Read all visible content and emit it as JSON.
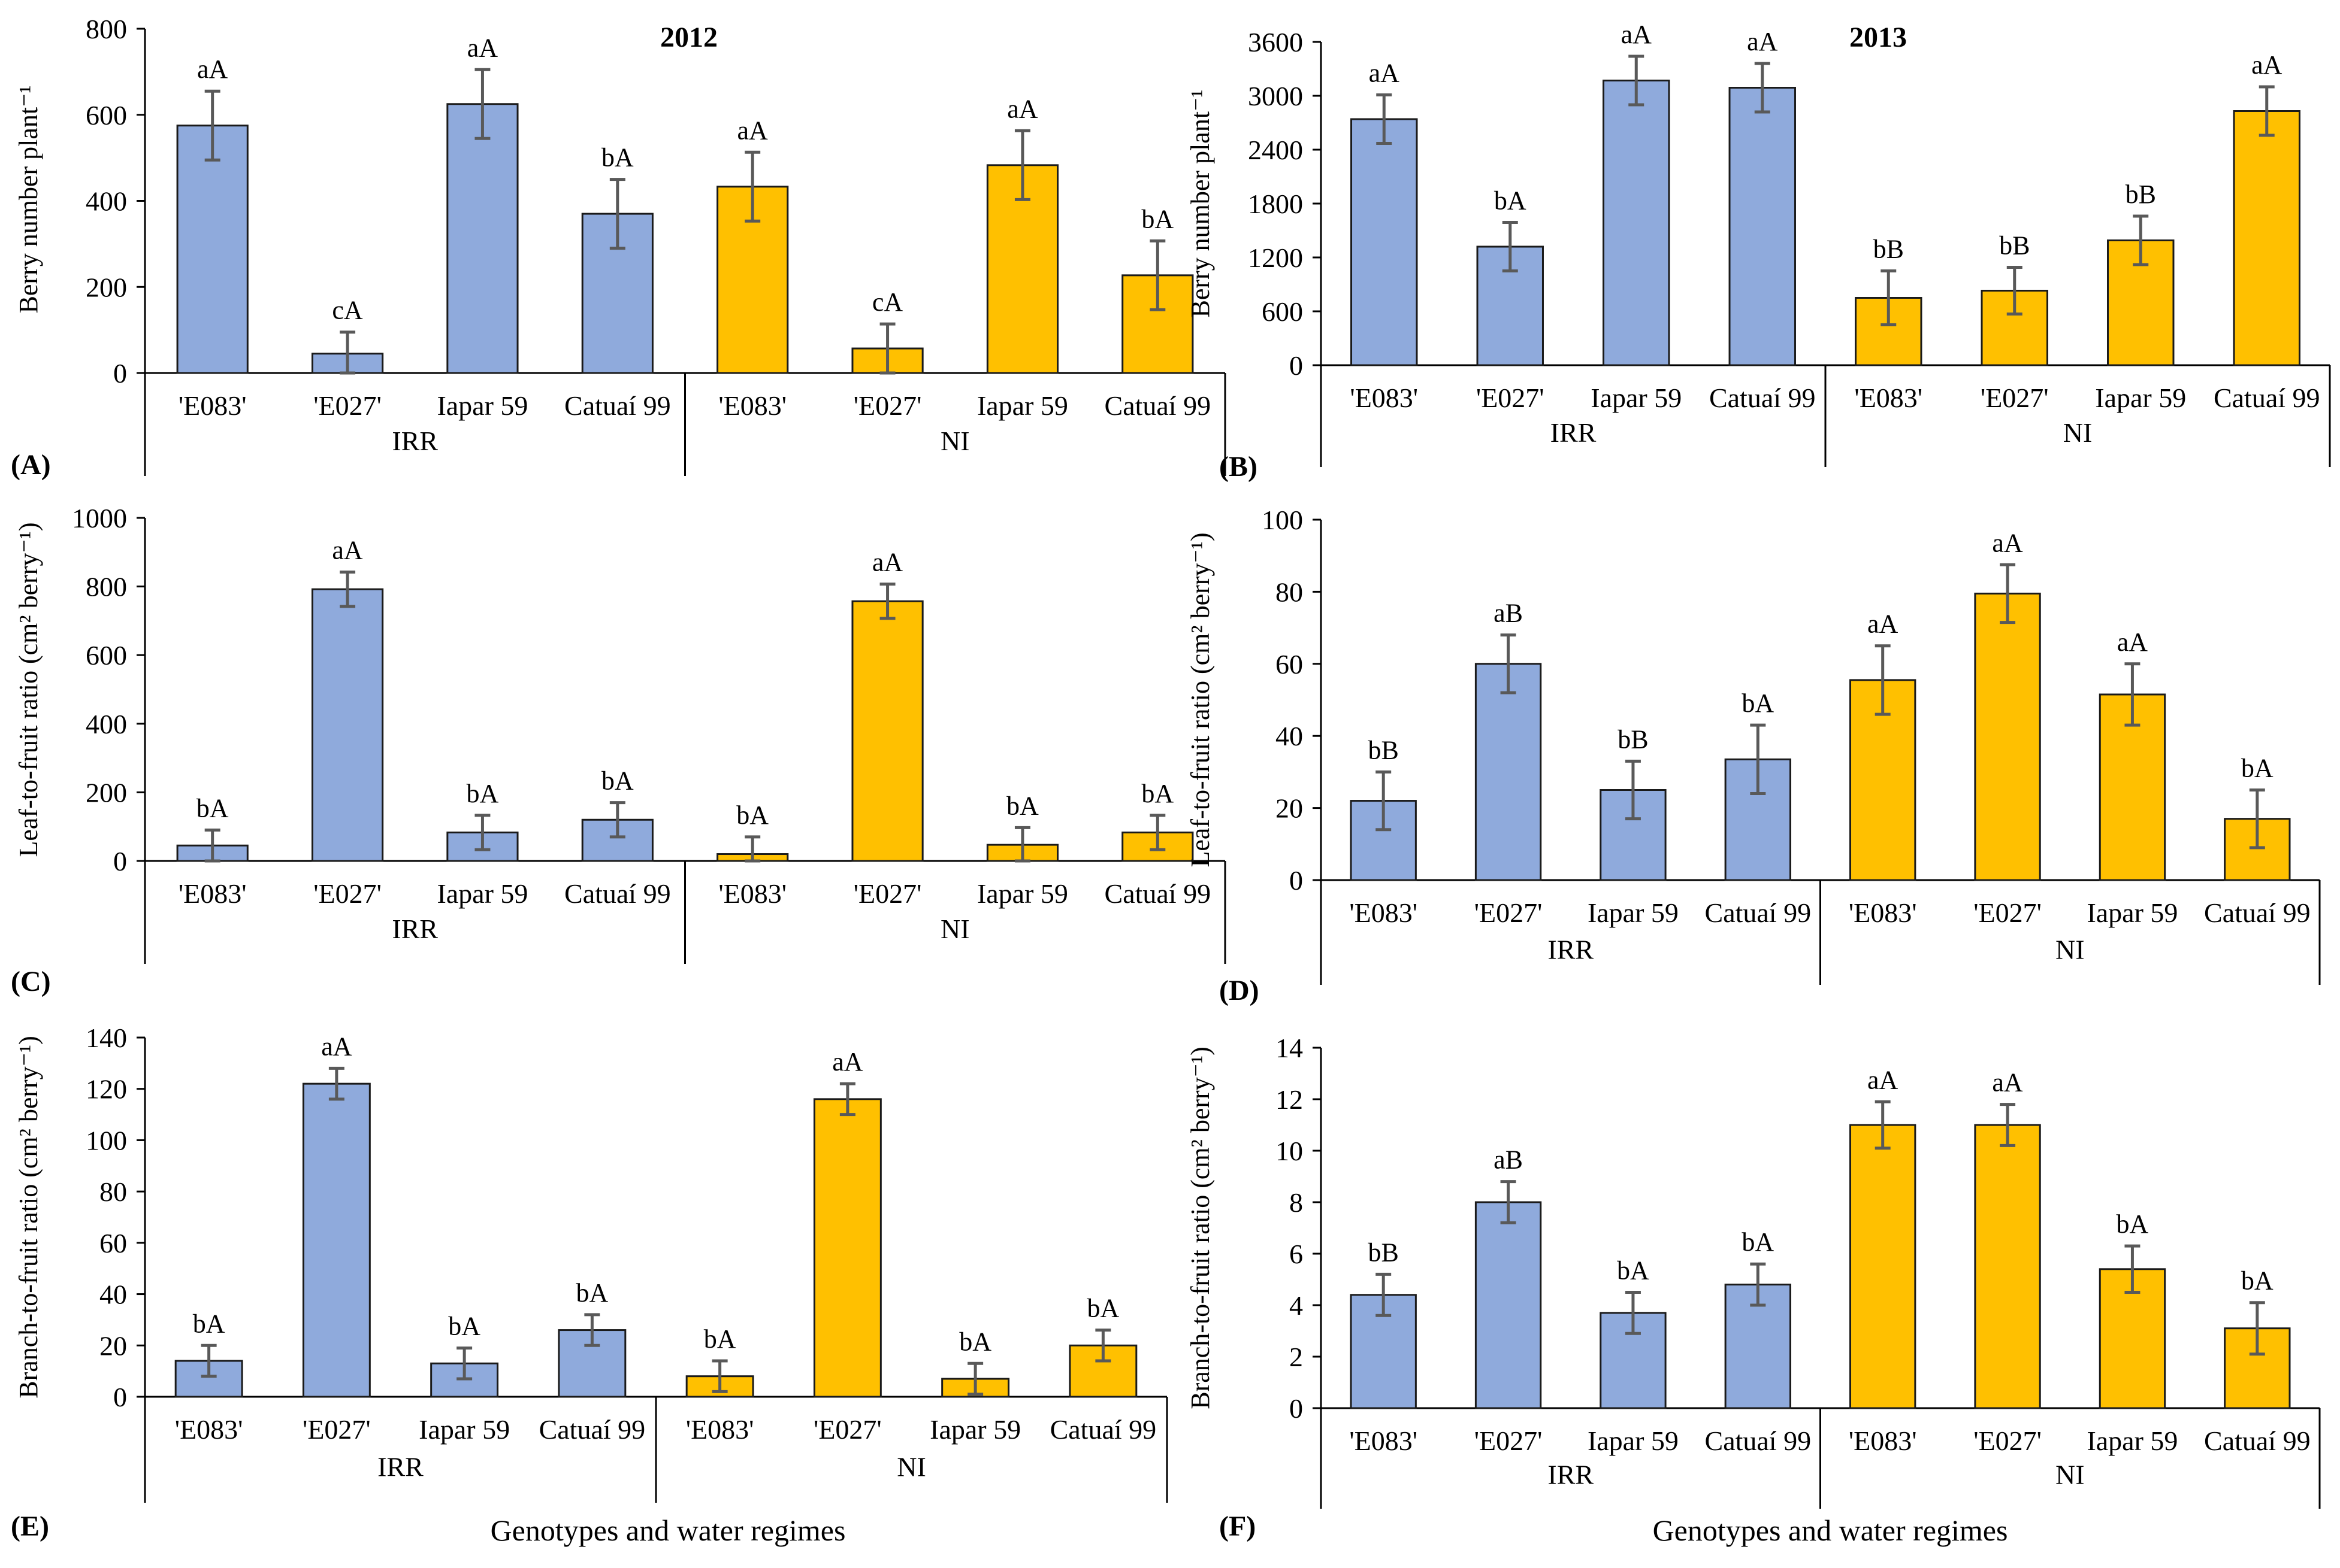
{
  "colors": {
    "irr": "#8faadc",
    "ni": "#ffc000"
  },
  "x_title": "Genotypes and water regimes",
  "chart_data": [
    {
      "id": "A",
      "panel_label": "(A)",
      "year": "2012",
      "type": "bar",
      "ylabel": "Berry number plant⁻¹",
      "ylim": [
        0,
        800
      ],
      "yticks": [
        0,
        200,
        400,
        600,
        800
      ],
      "groups": [
        "IRR",
        "NI"
      ],
      "categories": [
        "'E083'",
        "'E027'",
        "Iapar 59",
        "Catuaí 99",
        "'E083'",
        "'E027'",
        "Iapar 59",
        "Catuaí 99"
      ],
      "values": [
        575,
        45,
        625,
        370,
        433,
        57,
        483,
        227
      ],
      "errors": [
        80,
        50,
        80,
        80,
        80,
        57,
        80,
        80
      ],
      "labels": [
        "aA",
        "cA",
        "aA",
        "bA",
        "aA",
        "cA",
        "aA",
        "bA"
      ]
    },
    {
      "id": "B",
      "panel_label": "(B)",
      "year": "2013",
      "type": "bar",
      "ylabel": "Berry number plant⁻¹",
      "ylim": [
        0,
        3600
      ],
      "yticks": [
        0,
        600,
        1200,
        1800,
        2400,
        3000,
        3600
      ],
      "groups": [
        "IRR",
        "NI"
      ],
      "categories": [
        "'E083'",
        "'E027'",
        "Iapar 59",
        "Catuaí 99",
        "'E083'",
        "'E027'",
        "Iapar 59",
        "Catuaí 99"
      ],
      "values": [
        2740,
        1320,
        3170,
        3090,
        750,
        830,
        1390,
        2830
      ],
      "errors": [
        270,
        270,
        270,
        270,
        300,
        260,
        270,
        270
      ],
      "labels": [
        "aA",
        "bA",
        "aA",
        "aA",
        "bB",
        "bB",
        "bB",
        "aA"
      ]
    },
    {
      "id": "C",
      "panel_label": "(C)",
      "type": "bar",
      "ylabel": "Leaf-to-fruit ratio (cm² berry⁻¹)",
      "ylim": [
        0,
        1000
      ],
      "yticks": [
        0,
        200,
        400,
        600,
        800,
        1000
      ],
      "groups": [
        "IRR",
        "NI"
      ],
      "categories": [
        "'E083'",
        "'E027'",
        "Iapar 59",
        "Catuaí 99",
        "'E083'",
        "'E027'",
        "Iapar 59",
        "Catuaí 99"
      ],
      "values": [
        45,
        792,
        83,
        120,
        20,
        757,
        47,
        83
      ],
      "errors": [
        45,
        50,
        50,
        50,
        50,
        50,
        50,
        50
      ],
      "labels": [
        "bA",
        "aA",
        "bA",
        "bA",
        "bA",
        "aA",
        "bA",
        "bA"
      ]
    },
    {
      "id": "D",
      "panel_label": "(D)",
      "type": "bar",
      "ylabel": "Leaf-to-fruit ratio (cm² berry⁻¹)",
      "ylim": [
        0,
        100
      ],
      "yticks": [
        0,
        20,
        40,
        60,
        80,
        100
      ],
      "groups": [
        "IRR",
        "NI"
      ],
      "categories": [
        "'E083'",
        "'E027'",
        "Iapar 59",
        "Catuaí 99",
        "'E083'",
        "'E027'",
        "Iapar 59",
        "Catuaí 99"
      ],
      "values": [
        22,
        60,
        25,
        33.5,
        55.5,
        79.5,
        51.5,
        17
      ],
      "errors": [
        8,
        8,
        8,
        9.5,
        9.5,
        8,
        8.5,
        8
      ],
      "labels": [
        "bB",
        "aB",
        "bB",
        "bA",
        "aA",
        "aA",
        "aA",
        "bA"
      ]
    },
    {
      "id": "E",
      "panel_label": "(E)",
      "type": "bar",
      "ylabel": "Branch-to-fruit ratio (cm² berry⁻¹)",
      "ylim": [
        0,
        140
      ],
      "yticks": [
        0,
        20,
        40,
        60,
        80,
        100,
        120,
        140
      ],
      "groups": [
        "IRR",
        "NI"
      ],
      "categories": [
        "'E083'",
        "'E027'",
        "Iapar 59",
        "Catuaí 99",
        "'E083'",
        "'E027'",
        "Iapar 59",
        "Catuaí 99"
      ],
      "values": [
        14,
        122,
        13,
        26,
        8,
        116,
        7,
        20
      ],
      "errors": [
        6,
        6,
        6,
        6,
        6,
        6,
        6,
        6
      ],
      "labels": [
        "bA",
        "aA",
        "bA",
        "bA",
        "bA",
        "aA",
        "bA",
        "bA"
      ]
    },
    {
      "id": "F",
      "panel_label": "(F)",
      "type": "bar",
      "ylabel": "Branch-to-fruit ratio (cm² berry⁻¹)",
      "ylim": [
        0,
        14
      ],
      "yticks": [
        0,
        2,
        4,
        6,
        8,
        10,
        12,
        14
      ],
      "groups": [
        "IRR",
        "NI"
      ],
      "categories": [
        "'E083'",
        "'E027'",
        "Iapar 59",
        "Catuaí 99",
        "'E083'",
        "'E027'",
        "Iapar 59",
        "Catuaí 99"
      ],
      "values": [
        4.4,
        8.0,
        3.7,
        4.8,
        11.0,
        11.0,
        5.4,
        3.1
      ],
      "errors": [
        0.8,
        0.8,
        0.8,
        0.8,
        0.9,
        0.8,
        0.9,
        1.0
      ],
      "labels": [
        "bB",
        "aB",
        "bA",
        "bA",
        "aA",
        "aA",
        "bA",
        "bA"
      ]
    }
  ]
}
